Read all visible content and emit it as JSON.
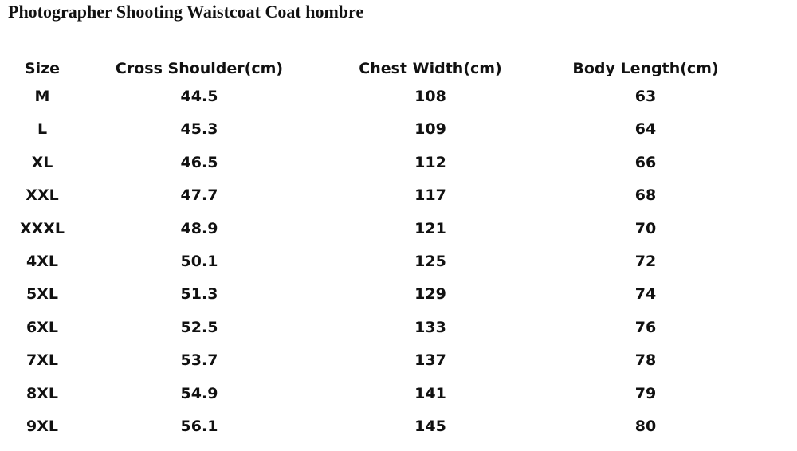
{
  "header": {
    "title": "Photographer Shooting Waistcoat Coat hombre"
  },
  "table": {
    "columns": [
      "Size",
      "Cross Shoulder(cm)",
      "Chest Width(cm)",
      "Body Length(cm)"
    ],
    "rows": [
      [
        "M",
        "44.5",
        "108",
        "63"
      ],
      [
        "L",
        "45.3",
        "109",
        "64"
      ],
      [
        "XL",
        "46.5",
        "112",
        "66"
      ],
      [
        "XXL",
        "47.7",
        "117",
        "68"
      ],
      [
        "XXXL",
        "48.9",
        "121",
        "70"
      ],
      [
        "4XL",
        "50.1",
        "125",
        "72"
      ],
      [
        "5XL",
        "51.3",
        "129",
        "74"
      ],
      [
        "6XL",
        "52.5",
        "133",
        "76"
      ],
      [
        "7XL",
        "53.7",
        "137",
        "78"
      ],
      [
        "8XL",
        "54.9",
        "141",
        "79"
      ],
      [
        "9XL",
        "56.1",
        "145",
        "80"
      ]
    ]
  }
}
